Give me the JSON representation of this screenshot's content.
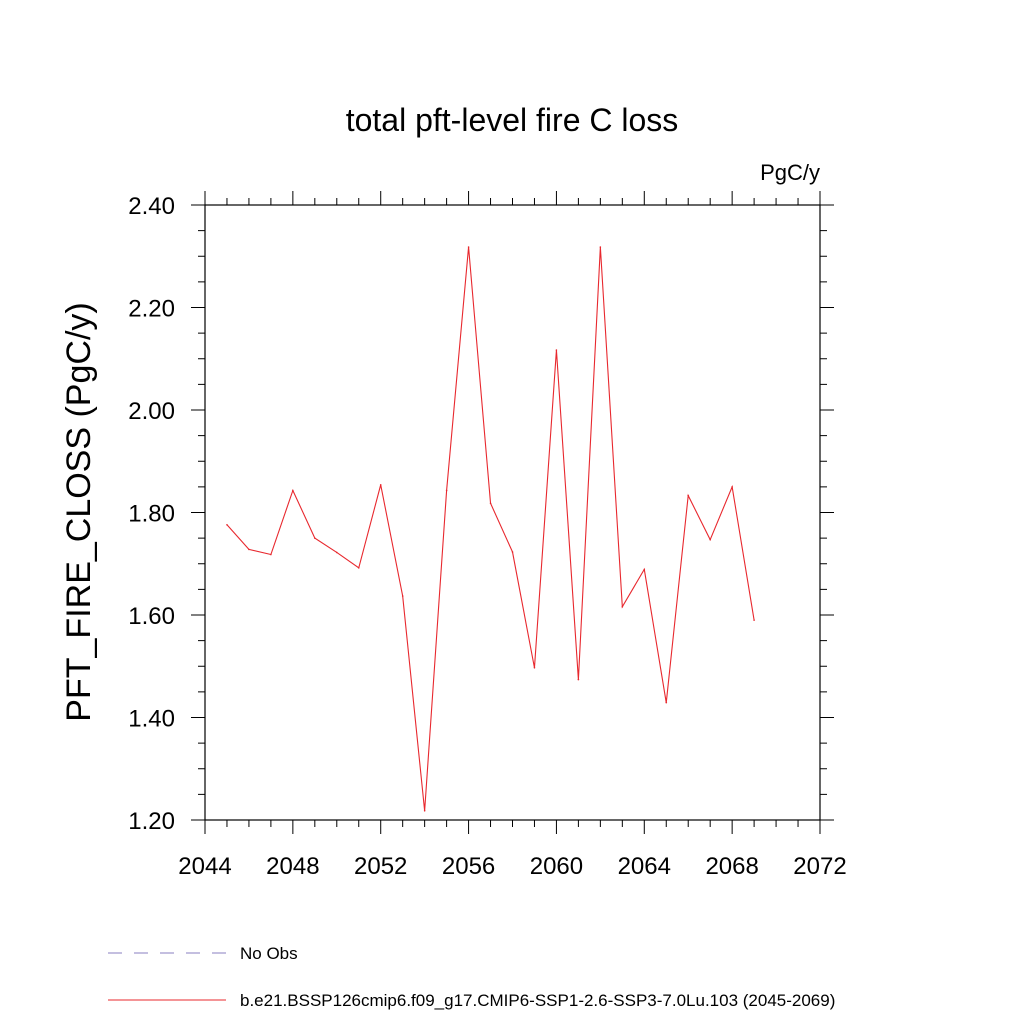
{
  "chart_data": {
    "type": "line",
    "title": "total pft-level fire C loss",
    "units_label": "PgC/y",
    "ylabel": "PFT_FIRE_CLOSS  (PgC/y)",
    "xlabel": "",
    "xlim": [
      2044,
      2072
    ],
    "ylim": [
      1.2,
      2.4
    ],
    "x_ticks": [
      "2044",
      "2048",
      "2052",
      "2056",
      "2060",
      "2064",
      "2068",
      "2072"
    ],
    "y_ticks": [
      "1.20",
      "1.40",
      "1.60",
      "1.80",
      "2.00",
      "2.20",
      "2.40"
    ],
    "x": [
      2045,
      2046,
      2047,
      2048,
      2049,
      2050,
      2051,
      2052,
      2053,
      2054,
      2055,
      2056,
      2057,
      2058,
      2059,
      2060,
      2061,
      2062,
      2063,
      2064,
      2065,
      2066,
      2067,
      2068,
      2069
    ],
    "series": [
      {
        "name": "b.e21.BSSP126cmip6.f09_g17.CMIP6-SSP1-2.6-SSP3-7.0Lu.103 (2045-2069)",
        "color": "#e8282e",
        "values": [
          1.776,
          1.728,
          1.718,
          1.843,
          1.75,
          1.722,
          1.692,
          1.854,
          1.637,
          1.218,
          1.843,
          2.318,
          1.818,
          1.723,
          1.497,
          2.117,
          1.474,
          2.318,
          1.616,
          1.689,
          1.429,
          1.833,
          1.747,
          1.85,
          1.59
        ]
      }
    ],
    "legend": [
      {
        "label": "No Obs",
        "style": "dashed",
        "color": "#8a7fc0"
      },
      {
        "label": "b.e21.BSSP126cmip6.f09_g17.CMIP6-SSP1-2.6-SSP3-7.0Lu.103 (2045-2069)",
        "style": "solid",
        "color": "#e8282e"
      }
    ],
    "legend_placement": "bottom",
    "grid": false
  }
}
